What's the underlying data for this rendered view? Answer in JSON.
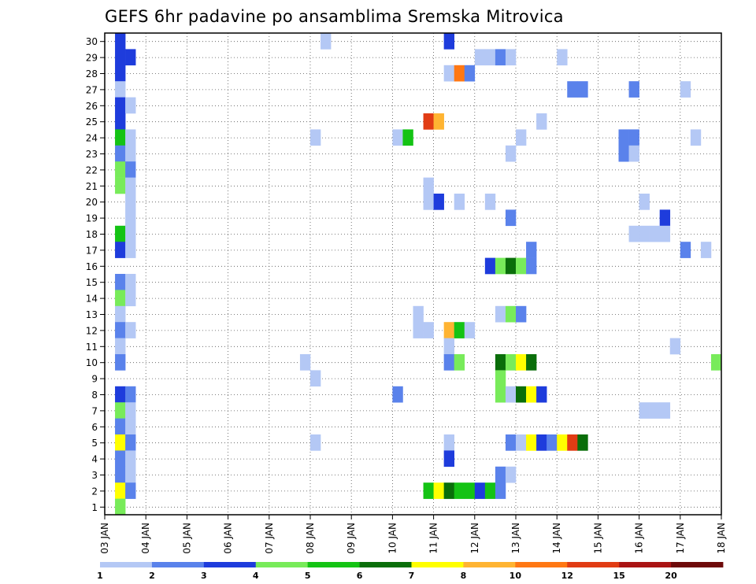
{
  "chart_data": {
    "type": "heatmap",
    "title": "GEFS 6hr padavine po ansamblima Sremska Mitrovica",
    "xlabel": "",
    "ylabel": "",
    "y_ticks": [
      "1",
      "2",
      "3",
      "4",
      "5",
      "6",
      "7",
      "8",
      "9",
      "10",
      "11",
      "12",
      "13",
      "14",
      "15",
      "16",
      "17",
      "18",
      "19",
      "20",
      "21",
      "22",
      "23",
      "24",
      "25",
      "26",
      "27",
      "28",
      "29",
      "30"
    ],
    "x_ticks": [
      "03 JAN",
      "04 JAN",
      "05 JAN",
      "06 JAN",
      "07 JAN",
      "08 JAN",
      "09 JAN",
      "10 JAN",
      "11 JAN",
      "12 JAN",
      "13 JAN",
      "14 JAN",
      "15 JAN",
      "16 JAN",
      "17 JAN",
      "18 JAN"
    ],
    "x_range_days": [
      0,
      15
    ],
    "y_range": [
      0,
      30
    ],
    "grid": true,
    "colorbar": {
      "colors": [
        "#b4c8f5",
        "#5a82eb",
        "#1e3cdc",
        "#78eb5a",
        "#14c314",
        "#0a6e0a",
        "#ffff00",
        "#ffb432",
        "#ff7814",
        "#e13c14",
        "#aa1414",
        "#6e0a0a"
      ],
      "labels": [
        "1",
        "2",
        "3",
        "4",
        "5",
        "6",
        "7",
        "8",
        "10",
        "12",
        "15",
        "20"
      ]
    },
    "cells": [
      {
        "m": 30,
        "t": 1,
        "c": 2
      },
      {
        "m": 30,
        "t": 21,
        "c": 0
      },
      {
        "m": 30,
        "t": 33,
        "c": 2
      },
      {
        "m": 29,
        "t": 1,
        "c": 2
      },
      {
        "m": 29,
        "t": 2,
        "c": 2
      },
      {
        "m": 29,
        "t": 36,
        "c": 0
      },
      {
        "m": 29,
        "t": 37,
        "c": 0
      },
      {
        "m": 29,
        "t": 38,
        "c": 1
      },
      {
        "m": 29,
        "t": 39,
        "c": 0
      },
      {
        "m": 29,
        "t": 44,
        "c": 0
      },
      {
        "m": 28,
        "t": 1,
        "c": 2
      },
      {
        "m": 28,
        "t": 33,
        "c": 0
      },
      {
        "m": 28,
        "t": 34,
        "c": 8
      },
      {
        "m": 28,
        "t": 35,
        "c": 1
      },
      {
        "m": 27,
        "t": 1,
        "c": 0
      },
      {
        "m": 27,
        "t": 45,
        "c": 1
      },
      {
        "m": 27,
        "t": 46,
        "c": 1
      },
      {
        "m": 27,
        "t": 51,
        "c": 1
      },
      {
        "m": 27,
        "t": 56,
        "c": 0
      },
      {
        "m": 26,
        "t": 1,
        "c": 2
      },
      {
        "m": 26,
        "t": 2,
        "c": 0
      },
      {
        "m": 25,
        "t": 1,
        "c": 2
      },
      {
        "m": 25,
        "t": 31,
        "c": 9
      },
      {
        "m": 25,
        "t": 32,
        "c": 7
      },
      {
        "m": 25,
        "t": 42,
        "c": 0
      },
      {
        "m": 24,
        "t": 1,
        "c": 4
      },
      {
        "m": 24,
        "t": 2,
        "c": 0
      },
      {
        "m": 24,
        "t": 20,
        "c": 0
      },
      {
        "m": 24,
        "t": 28,
        "c": 0
      },
      {
        "m": 24,
        "t": 29,
        "c": 4
      },
      {
        "m": 24,
        "t": 40,
        "c": 0
      },
      {
        "m": 24,
        "t": 50,
        "c": 1
      },
      {
        "m": 24,
        "t": 51,
        "c": 1
      },
      {
        "m": 24,
        "t": 57,
        "c": 0
      },
      {
        "m": 23,
        "t": 1,
        "c": 1
      },
      {
        "m": 23,
        "t": 2,
        "c": 0
      },
      {
        "m": 23,
        "t": 39,
        "c": 0
      },
      {
        "m": 23,
        "t": 50,
        "c": 1
      },
      {
        "m": 23,
        "t": 51,
        "c": 0
      },
      {
        "m": 22,
        "t": 1,
        "c": 3
      },
      {
        "m": 22,
        "t": 2,
        "c": 1
      },
      {
        "m": 21,
        "t": 1,
        "c": 3
      },
      {
        "m": 21,
        "t": 2,
        "c": 0
      },
      {
        "m": 21,
        "t": 31,
        "c": 0
      },
      {
        "m": 20,
        "t": 2,
        "c": 0
      },
      {
        "m": 20,
        "t": 31,
        "c": 0
      },
      {
        "m": 20,
        "t": 32,
        "c": 2
      },
      {
        "m": 20,
        "t": 34,
        "c": 0
      },
      {
        "m": 20,
        "t": 37,
        "c": 0
      },
      {
        "m": 20,
        "t": 52,
        "c": 0
      },
      {
        "m": 19,
        "t": 2,
        "c": 0
      },
      {
        "m": 19,
        "t": 39,
        "c": 1
      },
      {
        "m": 19,
        "t": 54,
        "c": 2
      },
      {
        "m": 18,
        "t": 1,
        "c": 4
      },
      {
        "m": 18,
        "t": 2,
        "c": 0
      },
      {
        "m": 18,
        "t": 51,
        "c": 0
      },
      {
        "m": 18,
        "t": 52,
        "c": 0
      },
      {
        "m": 18,
        "t": 53,
        "c": 0
      },
      {
        "m": 18,
        "t": 54,
        "c": 0
      },
      {
        "m": 17,
        "t": 1,
        "c": 2
      },
      {
        "m": 17,
        "t": 2,
        "c": 0
      },
      {
        "m": 17,
        "t": 41,
        "c": 1
      },
      {
        "m": 17,
        "t": 56,
        "c": 1
      },
      {
        "m": 17,
        "t": 58,
        "c": 0
      },
      {
        "m": 16,
        "t": 37,
        "c": 2
      },
      {
        "m": 16,
        "t": 38,
        "c": 3
      },
      {
        "m": 16,
        "t": 39,
        "c": 5
      },
      {
        "m": 16,
        "t": 40,
        "c": 3
      },
      {
        "m": 16,
        "t": 41,
        "c": 1
      },
      {
        "m": 15,
        "t": 1,
        "c": 1
      },
      {
        "m": 15,
        "t": 2,
        "c": 0
      },
      {
        "m": 14,
        "t": 1,
        "c": 3
      },
      {
        "m": 14,
        "t": 2,
        "c": 0
      },
      {
        "m": 13,
        "t": 1,
        "c": 0
      },
      {
        "m": 13,
        "t": 30,
        "c": 0
      },
      {
        "m": 13,
        "t": 38,
        "c": 0
      },
      {
        "m": 13,
        "t": 39,
        "c": 3
      },
      {
        "m": 13,
        "t": 40,
        "c": 1
      },
      {
        "m": 12,
        "t": 1,
        "c": 1
      },
      {
        "m": 12,
        "t": 2,
        "c": 0
      },
      {
        "m": 12,
        "t": 30,
        "c": 0
      },
      {
        "m": 12,
        "t": 31,
        "c": 0
      },
      {
        "m": 12,
        "t": 33,
        "c": 7
      },
      {
        "m": 12,
        "t": 34,
        "c": 4
      },
      {
        "m": 12,
        "t": 35,
        "c": 0
      },
      {
        "m": 11,
        "t": 1,
        "c": 0
      },
      {
        "m": 11,
        "t": 33,
        "c": 0
      },
      {
        "m": 11,
        "t": 55,
        "c": 0
      },
      {
        "m": 10,
        "t": 1,
        "c": 1
      },
      {
        "m": 10,
        "t": 19,
        "c": 0
      },
      {
        "m": 10,
        "t": 33,
        "c": 1
      },
      {
        "m": 10,
        "t": 34,
        "c": 3
      },
      {
        "m": 10,
        "t": 38,
        "c": 5
      },
      {
        "m": 10,
        "t": 39,
        "c": 3
      },
      {
        "m": 10,
        "t": 40,
        "c": 6
      },
      {
        "m": 10,
        "t": 41,
        "c": 5
      },
      {
        "m": 10,
        "t": 59,
        "c": 3
      },
      {
        "m": 9,
        "t": 20,
        "c": 0
      },
      {
        "m": 9,
        "t": 38,
        "c": 3
      },
      {
        "m": 8,
        "t": 1,
        "c": 2
      },
      {
        "m": 8,
        "t": 2,
        "c": 1
      },
      {
        "m": 8,
        "t": 28,
        "c": 1
      },
      {
        "m": 8,
        "t": 38,
        "c": 3
      },
      {
        "m": 8,
        "t": 39,
        "c": 0
      },
      {
        "m": 8,
        "t": 40,
        "c": 5
      },
      {
        "m": 8,
        "t": 41,
        "c": 6
      },
      {
        "m": 8,
        "t": 42,
        "c": 2
      },
      {
        "m": 7,
        "t": 1,
        "c": 3
      },
      {
        "m": 7,
        "t": 2,
        "c": 0
      },
      {
        "m": 7,
        "t": 52,
        "c": 0
      },
      {
        "m": 7,
        "t": 53,
        "c": 0
      },
      {
        "m": 7,
        "t": 54,
        "c": 0
      },
      {
        "m": 6,
        "t": 1,
        "c": 1
      },
      {
        "m": 6,
        "t": 2,
        "c": 0
      },
      {
        "m": 5,
        "t": 1,
        "c": 6
      },
      {
        "m": 5,
        "t": 2,
        "c": 1
      },
      {
        "m": 5,
        "t": 20,
        "c": 0
      },
      {
        "m": 5,
        "t": 33,
        "c": 0
      },
      {
        "m": 5,
        "t": 39,
        "c": 1
      },
      {
        "m": 5,
        "t": 40,
        "c": 0
      },
      {
        "m": 5,
        "t": 41,
        "c": 6
      },
      {
        "m": 5,
        "t": 42,
        "c": 2
      },
      {
        "m": 5,
        "t": 43,
        "c": 1
      },
      {
        "m": 5,
        "t": 44,
        "c": 6
      },
      {
        "m": 5,
        "t": 45,
        "c": 9
      },
      {
        "m": 5,
        "t": 46,
        "c": 5
      },
      {
        "m": 4,
        "t": 1,
        "c": 1
      },
      {
        "m": 4,
        "t": 2,
        "c": 0
      },
      {
        "m": 4,
        "t": 33,
        "c": 2
      },
      {
        "m": 3,
        "t": 1,
        "c": 1
      },
      {
        "m": 3,
        "t": 2,
        "c": 0
      },
      {
        "m": 3,
        "t": 38,
        "c": 1
      },
      {
        "m": 3,
        "t": 39,
        "c": 0
      },
      {
        "m": 2,
        "t": 1,
        "c": 6
      },
      {
        "m": 2,
        "t": 2,
        "c": 1
      },
      {
        "m": 2,
        "t": 31,
        "c": 4
      },
      {
        "m": 2,
        "t": 32,
        "c": 6
      },
      {
        "m": 2,
        "t": 33,
        "c": 5
      },
      {
        "m": 2,
        "t": 34,
        "c": 4
      },
      {
        "m": 2,
        "t": 35,
        "c": 4
      },
      {
        "m": 2,
        "t": 36,
        "c": 2
      },
      {
        "m": 2,
        "t": 37,
        "c": 4
      },
      {
        "m": 2,
        "t": 38,
        "c": 1
      },
      {
        "m": 1,
        "t": 1,
        "c": 3
      }
    ]
  }
}
